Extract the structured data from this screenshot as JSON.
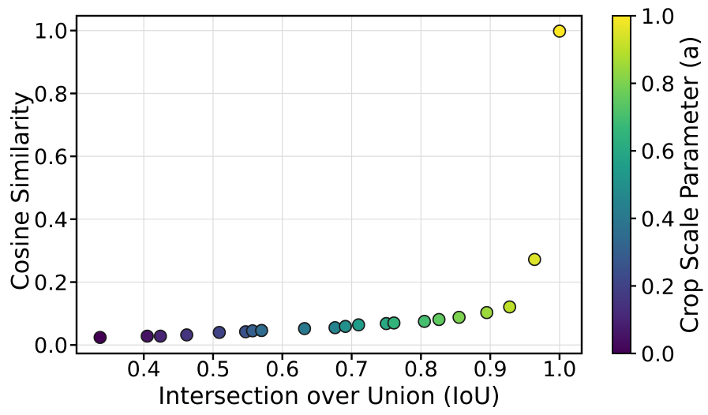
{
  "chart_data": {
    "type": "scatter",
    "title": "",
    "xlabel": "Intersection over Union (IoU)",
    "ylabel": "Cosine Similarity",
    "colorbar_label": "Crop Scale Parameter (a)",
    "xlim": [
      0.303,
      1.032
    ],
    "ylim": [
      -0.027,
      1.047
    ],
    "xticks": [
      0.4,
      0.5,
      0.6,
      0.7,
      0.8,
      0.9,
      1.0
    ],
    "yticks": [
      0.0,
      0.2,
      0.4,
      0.6,
      0.8,
      1.0
    ],
    "colorbar_ticks": [
      0.0,
      0.2,
      0.4,
      0.6,
      0.8,
      1.0
    ],
    "colorbar_range": [
      0.0,
      1.0
    ],
    "grid": true,
    "legend_position": "colorbar-right",
    "colormap": "viridis",
    "series_note": "each point colored by crop scale parameter a (viridis)",
    "points": [
      {
        "a": 0.0,
        "iou": 0.337,
        "cosine_similarity": 0.024
      },
      {
        "a": 0.05,
        "iou": 0.405,
        "cosine_similarity": 0.028
      },
      {
        "a": 0.1,
        "iou": 0.424,
        "cosine_similarity": 0.028
      },
      {
        "a": 0.15,
        "iou": 0.462,
        "cosine_similarity": 0.032
      },
      {
        "a": 0.2,
        "iou": 0.509,
        "cosine_similarity": 0.04
      },
      {
        "a": 0.25,
        "iou": 0.547,
        "cosine_similarity": 0.042
      },
      {
        "a": 0.3,
        "iou": 0.557,
        "cosine_similarity": 0.045
      },
      {
        "a": 0.35,
        "iou": 0.57,
        "cosine_similarity": 0.046
      },
      {
        "a": 0.4,
        "iou": 0.632,
        "cosine_similarity": 0.052
      },
      {
        "a": 0.45,
        "iou": 0.676,
        "cosine_similarity": 0.055
      },
      {
        "a": 0.5,
        "iou": 0.691,
        "cosine_similarity": 0.059
      },
      {
        "a": 0.55,
        "iou": 0.71,
        "cosine_similarity": 0.064
      },
      {
        "a": 0.6,
        "iou": 0.75,
        "cosine_similarity": 0.068
      },
      {
        "a": 0.65,
        "iou": 0.761,
        "cosine_similarity": 0.07
      },
      {
        "a": 0.7,
        "iou": 0.805,
        "cosine_similarity": 0.075
      },
      {
        "a": 0.75,
        "iou": 0.826,
        "cosine_similarity": 0.081
      },
      {
        "a": 0.8,
        "iou": 0.855,
        "cosine_similarity": 0.088
      },
      {
        "a": 0.85,
        "iou": 0.895,
        "cosine_similarity": 0.103
      },
      {
        "a": 0.9,
        "iou": 0.928,
        "cosine_similarity": 0.121
      },
      {
        "a": 0.95,
        "iou": 0.964,
        "cosine_similarity": 0.272
      },
      {
        "a": 1.0,
        "iou": 1.0,
        "cosine_similarity": 0.998
      }
    ],
    "colors": {
      "background": "#ffffff",
      "grid": "#dcdcdc",
      "spine": "#000000",
      "text": "#000000",
      "marker_edge": "#1a1a1a",
      "viridis_anchors": [
        "#440154",
        "#482878",
        "#3e4989",
        "#31688e",
        "#26828e",
        "#1f9e89",
        "#35b779",
        "#6ece58",
        "#b5de2b",
        "#fde725"
      ]
    }
  }
}
